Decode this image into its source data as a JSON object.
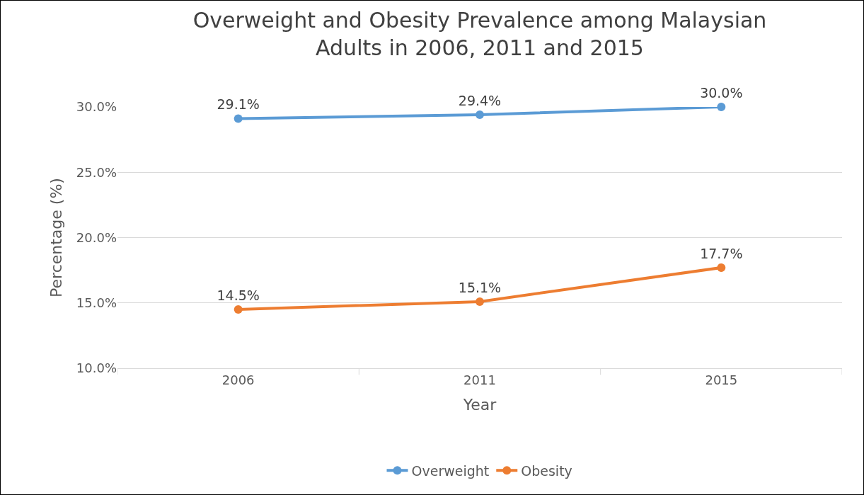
{
  "chart_data": {
    "type": "line",
    "title": "Overweight and Obesity Prevalence among Malaysian Adults in 2006, 2011 and 2015",
    "xlabel": "Year",
    "ylabel": "Percentage (%)",
    "categories": [
      "2006",
      "2011",
      "2015"
    ],
    "series": [
      {
        "name": "Overweight",
        "color": "#5b9bd5",
        "values": [
          29.1,
          29.4,
          30.0
        ],
        "value_labels": [
          "29.1%",
          "29.4%",
          "30.0%"
        ]
      },
      {
        "name": "Obesity",
        "color": "#ed7d31",
        "values": [
          14.5,
          15.1,
          17.7
        ],
        "value_labels": [
          "14.5%",
          "15.1%",
          "17.7%"
        ]
      }
    ],
    "ylim": [
      10,
      30
    ],
    "yticks": [
      {
        "value": 10,
        "label": "10.0%"
      },
      {
        "value": 15,
        "label": "15.0%"
      },
      {
        "value": 20,
        "label": "20.0%"
      },
      {
        "value": 25,
        "label": "25.0%"
      },
      {
        "value": 30,
        "label": "30.0%"
      }
    ],
    "grid": "y",
    "legend": "bottom",
    "marker": "circle",
    "line_style": "solid"
  }
}
